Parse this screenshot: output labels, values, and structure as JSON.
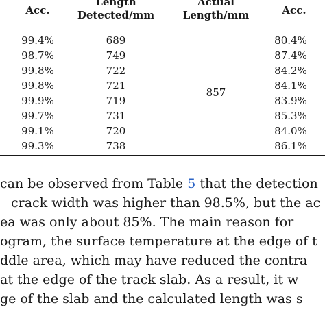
{
  "table": {
    "headers": {
      "acc_left": "Acc.",
      "length_detected_line1": "Length",
      "length_detected_line2": "Detected/mm",
      "actual_length_line1": "Actual",
      "actual_length_line2": "Length/mm",
      "acc_right": "Acc."
    },
    "rows": [
      {
        "acc_left": "99.4%",
        "length": "689",
        "acc_right": "80.4%"
      },
      {
        "acc_left": "98.7%",
        "length": "749",
        "acc_right": "87.4%"
      },
      {
        "acc_left": "99.8%",
        "length": "722",
        "acc_right": "84.2%"
      },
      {
        "acc_left": "99.8%",
        "length": "721",
        "acc_right": "84.1%"
      },
      {
        "acc_left": "99.9%",
        "length": "719",
        "acc_right": "83.9%"
      },
      {
        "acc_left": "99.7%",
        "length": "731",
        "acc_right": "85.3%"
      },
      {
        "acc_left": "99.1%",
        "length": "720",
        "acc_right": "84.0%"
      },
      {
        "acc_left": "99.3%",
        "length": "738",
        "acc_right": "86.1%"
      }
    ],
    "actual_length": "857"
  },
  "paragraph": {
    "line1_before": "can be observed from Table ",
    "line1_ref": "5",
    "line1_after": " that the detection",
    "line2": "crack width was higher than 98.5%, but the ac",
    "line3": "ea was only about 85%.  The main reason for",
    "line4": "ogram, the surface temperature at the edge of t",
    "line5": "ddle area, which may have reduced the contra",
    "line6": "at the edge of the track slab.  As a result, it w",
    "line7": "ge of the slab and the calculated length was s"
  }
}
